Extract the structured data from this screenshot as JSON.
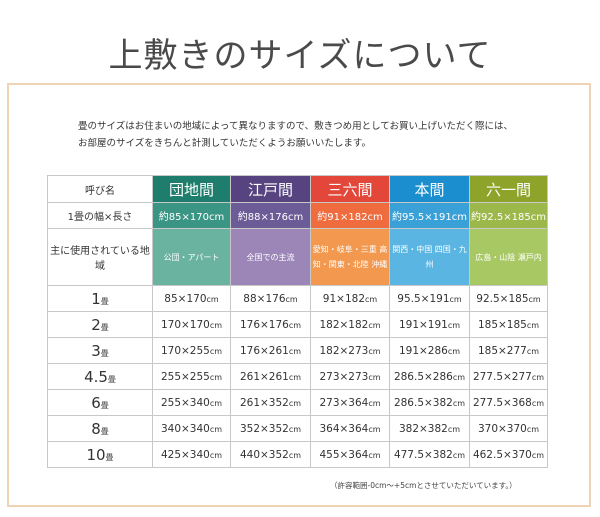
{
  "title": "上敷きのサイズについて",
  "intro": [
    "畳のサイズはお住まいの地域によって異なりますので、敷きつめ用としてお買い上げいただく際には、",
    "お部屋のサイズをきちんと計測していただくようお願いいたします。"
  ],
  "table": {
    "row_labels": {
      "name": "呼び名",
      "size": "1畳の幅×長さ",
      "region": "主に使用されている地域"
    },
    "columns": [
      {
        "name": "団地間",
        "size": "約85×170cm",
        "region": "公団・アパート",
        "colors": [
          "#1f7d6d",
          "#3b9584",
          "#6bb3a1"
        ]
      },
      {
        "name": "江戸間",
        "size": "約88×176cm",
        "region": "全国での主流",
        "colors": [
          "#56437f",
          "#6b5b96",
          "#9c86b8"
        ]
      },
      {
        "name": "三六間",
        "size": "約91×182cm",
        "region": "愛知・岐阜・三重 高知・関東・北陸 沖縄",
        "colors": [
          "#e2473a",
          "#ee6c3e",
          "#f3984f"
        ]
      },
      {
        "name": "本間",
        "size": "約95.5×191cm",
        "region": "関西・中国 四国・九州",
        "colors": [
          "#1b8ecf",
          "#3aa0d8",
          "#5bb5e2"
        ]
      },
      {
        "name": "六一間",
        "size": "約92.5×185cm",
        "region": "広島・山陰 瀬戸内",
        "colors": [
          "#8ea32a",
          "#9db84a",
          "#a8c863"
        ]
      }
    ],
    "unit": "畳",
    "rows": [
      {
        "num": "1",
        "cells": [
          "85×170",
          "88×176",
          "91×182",
          "95.5×191",
          "92.5×185"
        ]
      },
      {
        "num": "2",
        "cells": [
          "170×170",
          "176×176",
          "182×182",
          "191×191",
          "185×185"
        ]
      },
      {
        "num": "3",
        "cells": [
          "170×255",
          "176×261",
          "182×273",
          "191×286",
          "185×277"
        ]
      },
      {
        "num": "4.5",
        "cells": [
          "255×255",
          "261×261",
          "273×273",
          "286.5×286",
          "277.5×277"
        ]
      },
      {
        "num": "6",
        "cells": [
          "255×340",
          "261×352",
          "273×364",
          "286.5×382",
          "277.5×368"
        ]
      },
      {
        "num": "8",
        "cells": [
          "340×340",
          "352×352",
          "364×364",
          "382×382",
          "370×370"
        ]
      },
      {
        "num": "10",
        "cells": [
          "425×340",
          "440×352",
          "455×364",
          "477.5×382",
          "462.5×370"
        ]
      }
    ],
    "cm": "cm"
  },
  "note": "（許容範囲-0cm～+5cmとさせていただいています。）"
}
